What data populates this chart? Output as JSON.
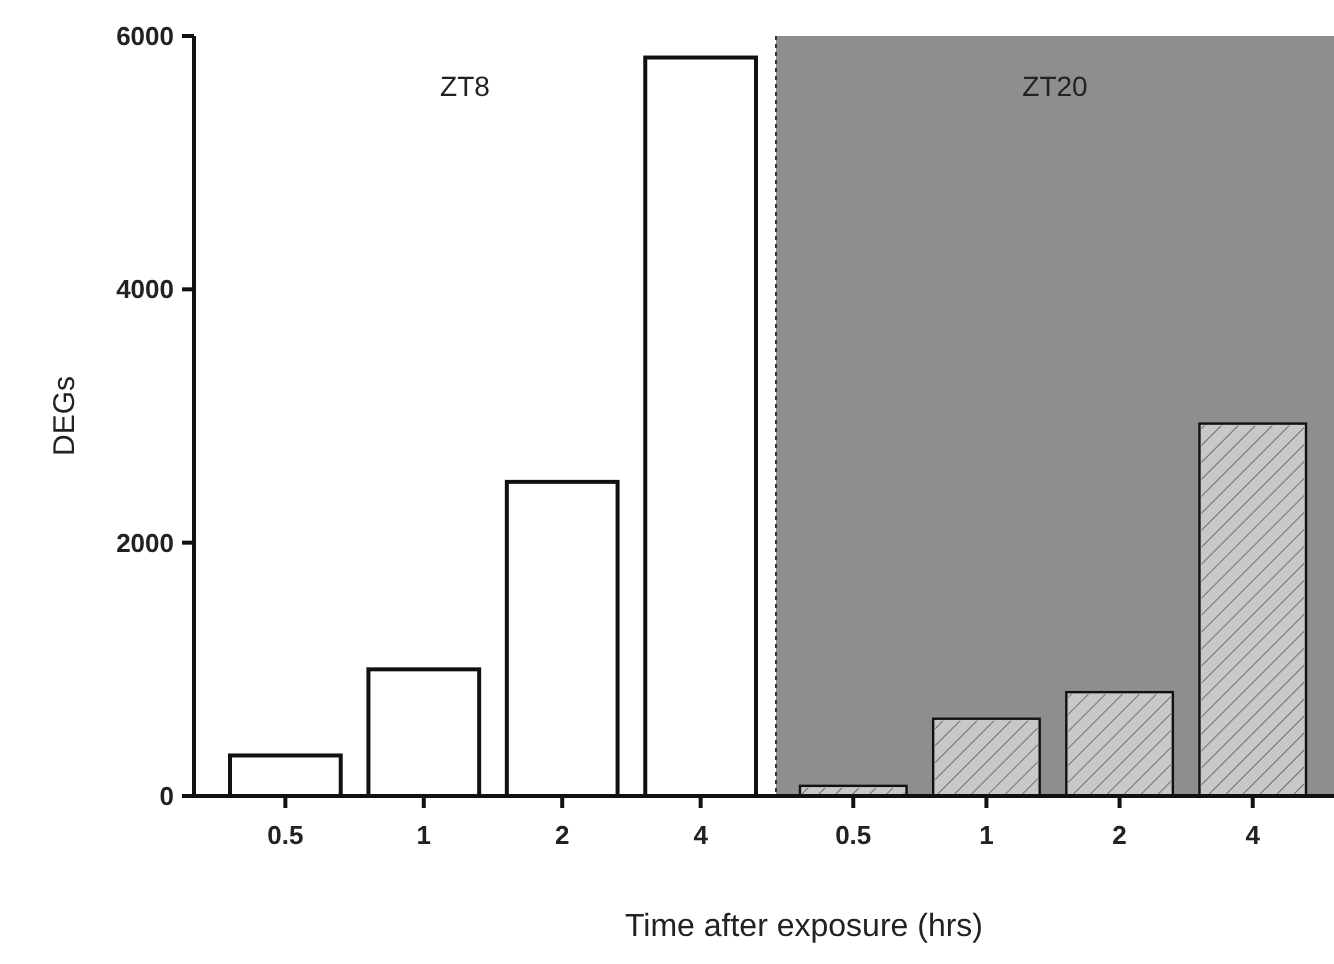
{
  "chart_data": [
    {
      "type": "bar",
      "ylabel": "DEGs",
      "xlabel": "Time after exposure (hrs)",
      "annotations": [
        "ZT8"
      ],
      "categories": [
        "0.5",
        "1",
        "2",
        "4"
      ],
      "ylim": [
        0,
        6000
      ],
      "yticks": [
        0,
        2000,
        4000,
        6000
      ],
      "series": [
        {
          "color": "#ffffff",
          "values": [
            320,
            1000,
            2480,
            5830
          ]
        }
      ]
    },
    {
      "type": "bar",
      "annotations": [
        "ZT20"
      ],
      "categories": [
        "0.5",
        "1",
        "2",
        "4"
      ],
      "ylim": [
        0,
        6000
      ],
      "tick_labels": "x",
      "bands": [
        {
          "axis": "y",
          "from": 0,
          "to": 6000,
          "color": "#8e8e8e"
        }
      ],
      "series": [
        {
          "color": "#c8c8c8",
          "values": [
            80,
            610,
            820,
            2940
          ]
        }
      ]
    }
  ]
}
